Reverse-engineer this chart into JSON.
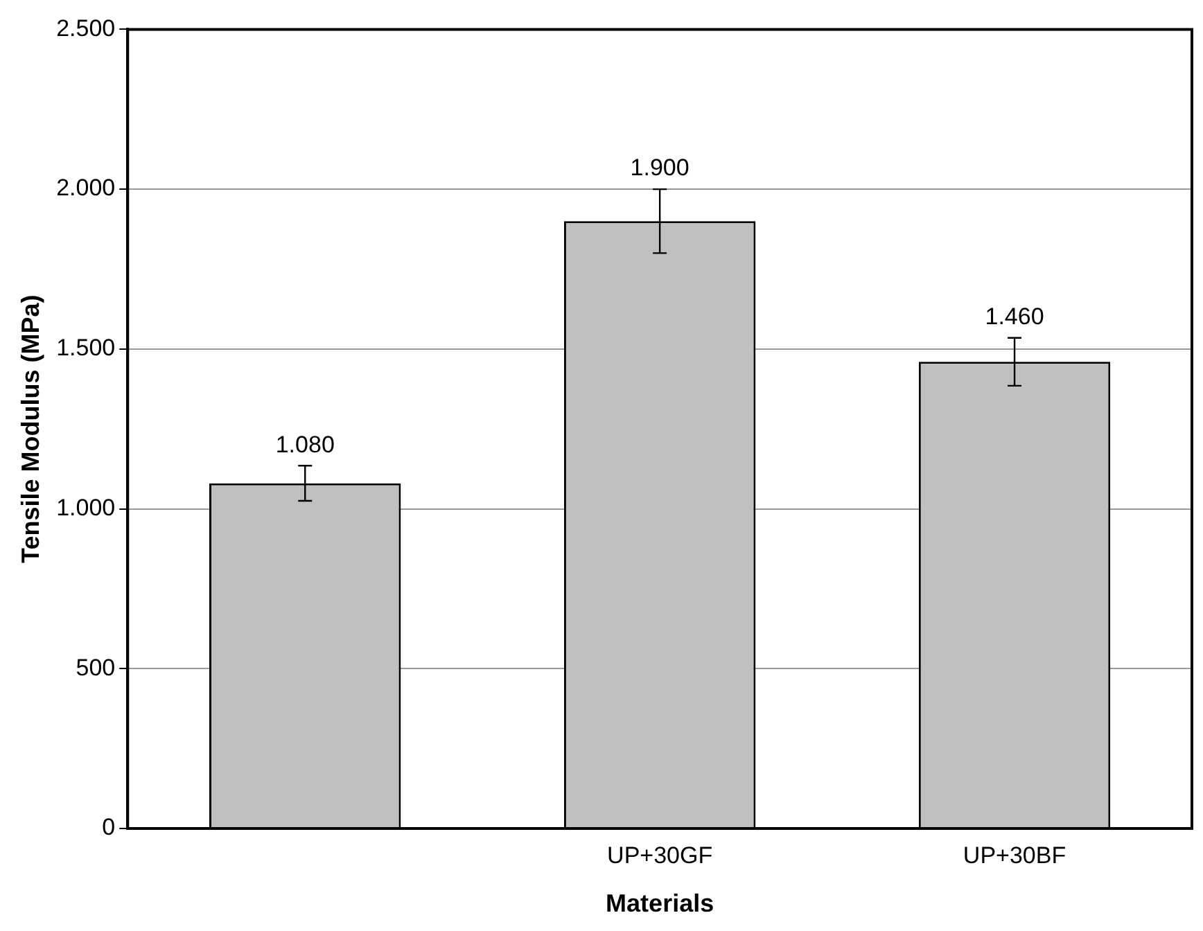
{
  "chart_data": {
    "type": "bar",
    "xlabel": "Materials",
    "ylabel": "Tensile Modulus (MPa)",
    "categories": [
      null,
      "UP+30GF",
      "UP+30BF"
    ],
    "values": [
      1080,
      1900,
      1460
    ],
    "errors": [
      55,
      100,
      75
    ],
    "value_labels": [
      "1.080",
      "1.900",
      "1.460"
    ],
    "color": "#c0c0c0",
    "ylim": [
      0,
      2500
    ],
    "yticks": [
      {
        "value": 0,
        "label": "0"
      },
      {
        "value": 500,
        "label": "500"
      },
      {
        "value": 1000,
        "label": "1.000"
      },
      {
        "value": 1500,
        "label": "1.500"
      },
      {
        "value": 2000,
        "label": "2.000"
      },
      {
        "value": 2500,
        "label": "2.500"
      }
    ],
    "grid": "y"
  }
}
